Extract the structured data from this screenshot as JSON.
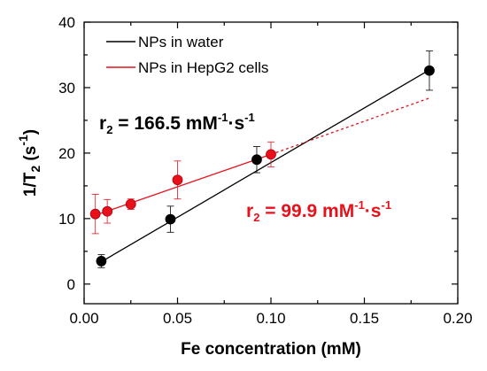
{
  "chart_data": {
    "type": "scatter",
    "xlabel": "Fe concentration (mM)",
    "ylabel": "1/T₂ (s⁻¹)",
    "xlim": [
      0.0,
      0.2
    ],
    "ylim": [
      -3,
      40
    ],
    "x_ticks": [
      "0.00",
      "0.05",
      "0.10",
      "0.15",
      "0.20"
    ],
    "x_tick_values": [
      0.0,
      0.05,
      0.1,
      0.15,
      0.2
    ],
    "y_ticks": [
      "0",
      "10",
      "20",
      "30",
      "40"
    ],
    "y_tick_values": [
      0,
      10,
      20,
      30,
      40
    ],
    "grid": false,
    "legend_position": "top-left",
    "series": [
      {
        "name": "NPs in water",
        "color": "#000000",
        "x": [
          0.0092,
          0.0462,
          0.0924,
          0.1848
        ],
        "y": [
          3.5,
          9.9,
          19.0,
          32.6
        ],
        "err": [
          1.0,
          2.0,
          2.0,
          3.0
        ],
        "fit": {
          "x_start": 0.0092,
          "x_end": 0.1848,
          "y_start": 3.4,
          "y_end": 32.7
        }
      },
      {
        "name": "NPs in HepG2 cells",
        "color": "#e8111b",
        "x": [
          0.006,
          0.0124,
          0.025,
          0.05,
          0.1
        ],
        "y": [
          10.7,
          11.1,
          12.2,
          15.9,
          19.8
        ],
        "err": [
          3.0,
          1.8,
          0.8,
          2.9,
          1.9
        ],
        "fit": {
          "x_start": 0.006,
          "x_end": 0.1,
          "y_start": 10.5,
          "y_end": 19.8
        },
        "fit_extension": {
          "x_start": 0.1,
          "x_end": 0.1848,
          "y_start": 19.8,
          "y_end": 28.4
        }
      }
    ],
    "annotations": [
      {
        "base": "r",
        "sub": "2",
        "text": " = 166.5 mM",
        "sup1": "-1",
        "mid": "·s",
        "sup2": "-1",
        "color": "#000000"
      },
      {
        "base": "r",
        "sub": "2",
        "text": " = 99.9 mM",
        "sup1": "-1",
        "mid": "·s",
        "sup2": "-1",
        "color": "#e8111b"
      }
    ]
  },
  "yaxis_title": {
    "prefix": "1/T",
    "sub": "2",
    "mid": " (s",
    "sup": "-1",
    "suffix": ")"
  }
}
